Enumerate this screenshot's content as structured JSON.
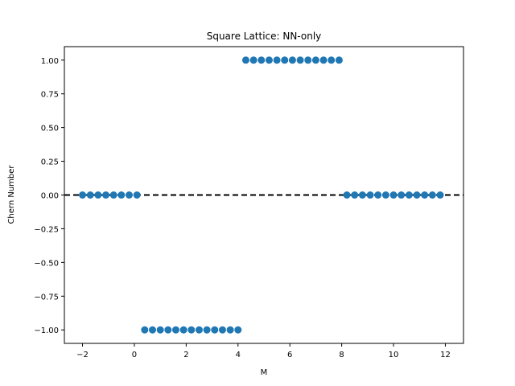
{
  "chart_data": {
    "type": "scatter",
    "title": "Square Lattice: NN-only",
    "xlabel": "M",
    "ylabel": "Chern Number",
    "xlim": [
      -2.7,
      12.7
    ],
    "ylim": [
      -1.1,
      1.1
    ],
    "xticks": [
      -2,
      0,
      2,
      4,
      6,
      8,
      10,
      12
    ],
    "xtick_labels": [
      "−2",
      "0",
      "2",
      "4",
      "6",
      "8",
      "10",
      "12"
    ],
    "yticks": [
      -1.0,
      -0.75,
      -0.5,
      -0.25,
      0.0,
      0.25,
      0.5,
      0.75,
      1.0
    ],
    "ytick_labels": [
      "−1.00",
      "−0.75",
      "−0.50",
      "−0.25",
      "0.00",
      "0.25",
      "0.50",
      "0.75",
      "1.00"
    ],
    "grid": false,
    "reference_line": {
      "y": 0,
      "style": "dashed",
      "color": "#000000"
    },
    "marker_color": "#1f77b4",
    "series": [
      {
        "x": [
          -2.0,
          -1.7,
          -1.4,
          -1.1,
          -0.8,
          -0.5,
          -0.2,
          0.1,
          0.4,
          0.7,
          1.0,
          1.3,
          1.6,
          1.9,
          2.2,
          2.5,
          2.8,
          3.1,
          3.4,
          3.7,
          4.0,
          4.3,
          4.6,
          4.9,
          5.2,
          5.5,
          5.8,
          6.1,
          6.4,
          6.7,
          7.0,
          7.3,
          7.6,
          7.9,
          8.2,
          8.5,
          8.8,
          9.1,
          9.4,
          9.7,
          10.0,
          10.3,
          10.6,
          10.9,
          11.2,
          11.5,
          11.8
        ],
        "y": [
          0,
          0,
          0,
          0,
          0,
          0,
          0,
          0,
          -1,
          -1,
          -1,
          -1,
          -1,
          -1,
          -1,
          -1,
          -1,
          -1,
          -1,
          -1,
          -1,
          1,
          1,
          1,
          1,
          1,
          1,
          1,
          1,
          1,
          1,
          1,
          1,
          1,
          0,
          0,
          0,
          0,
          0,
          0,
          0,
          0,
          0,
          0,
          0,
          0,
          0
        ]
      }
    ]
  }
}
